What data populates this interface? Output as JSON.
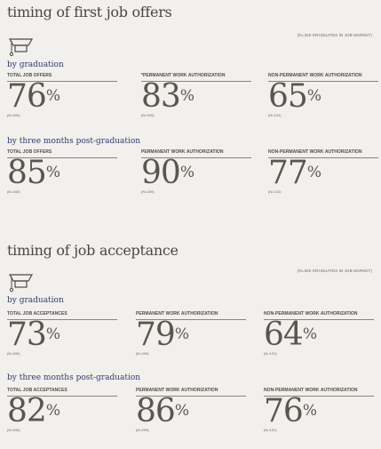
{
  "offers": {
    "title": "timing of first job offers",
    "note": "(N=340 GRADUATES IN JOB MARKET)",
    "by_graduation": {
      "heading": "by graduation",
      "stats": [
        {
          "label": "TOTAL JOB OFFERS",
          "value": "76",
          "pct": "%",
          "n": "(N=340)"
        },
        {
          "label": "*PERMANENT WORK AUTHORIZATION",
          "value": "83",
          "pct": "%",
          "n": "(N=209)"
        },
        {
          "label": "NON-PERMANENT WORK AUTHORIZATION",
          "value": "65",
          "pct": "%",
          "n": "(N=131)"
        }
      ]
    },
    "by_three_months": {
      "heading": "by three months post-graduation",
      "stats": [
        {
          "label": "TOTAL JOB OFFERS",
          "value": "85",
          "pct": "%",
          "n": "(N=340)"
        },
        {
          "label": "PERMANENT WORK AUTHORIZATION",
          "value": "90",
          "pct": "%",
          "n": "(N=209)"
        },
        {
          "label": "NON-PERMANENT WORK AUTHORIZATION",
          "value": "77",
          "pct": "%",
          "n": "(N=131)"
        }
      ]
    }
  },
  "acceptance": {
    "title": "timing of job acceptance",
    "note": "(N=340 GRADUATES IN JOB MARKET)",
    "by_graduation": {
      "heading": "by graduation",
      "stats": [
        {
          "label": "TOTAL JOB ACCEPTANCES",
          "value": "73",
          "pct": "%",
          "n": "(N=340)"
        },
        {
          "label": "PERMANENT WORK AUTHORIZATION",
          "value": "79",
          "pct": "%",
          "n": "(N=209)"
        },
        {
          "label": "NON-PERMANENT WORK AUTHORIZATION",
          "value": "64",
          "pct": "%",
          "n": "(N=131)"
        }
      ]
    },
    "by_three_months": {
      "heading": "by three months post-graduation",
      "stats": [
        {
          "label": "TOTAL JOB ACCEPTANCES",
          "value": "82",
          "pct": "%",
          "n": "(N=340)"
        },
        {
          "label": "PERMANENT WORK AUTHORIZATION",
          "value": "86",
          "pct": "%",
          "n": "(N=209)"
        },
        {
          "label": "NON-PERMANENT WORK AUTHORIZATION",
          "value": "76",
          "pct": "%",
          "n": "(N=131)"
        }
      ]
    }
  },
  "icons": {
    "graduation": "graduation-cap-icon"
  },
  "colors": {
    "background": "#f2f0ec",
    "heading_blue": "#2f3b70",
    "text": "#55504b"
  }
}
